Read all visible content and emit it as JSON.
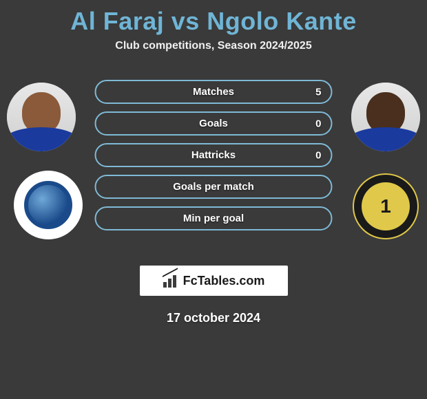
{
  "colors": {
    "background": "#3a3a3a",
    "accent": "#6fb5d6",
    "pill_border": "#7fbad6",
    "text": "#ffffff",
    "logo_bg": "#ffffff",
    "logo_text": "#1a1a1a"
  },
  "header": {
    "title": "Al Faraj vs Ngolo Kante",
    "subtitle": "Club competitions, Season 2024/2025"
  },
  "players": {
    "left": {
      "name": "Al Faraj",
      "club_badge": "al-hilal"
    },
    "right": {
      "name": "Ngolo Kante",
      "club_badge": "al-ittihad"
    }
  },
  "stats": [
    {
      "label": "Matches",
      "value": "5"
    },
    {
      "label": "Goals",
      "value": "0"
    },
    {
      "label": "Hattricks",
      "value": "0"
    },
    {
      "label": "Goals per match",
      "value": ""
    },
    {
      "label": "Min per goal",
      "value": ""
    }
  ],
  "footer": {
    "site_name": "FcTables.com",
    "date": "17 october 2024"
  }
}
